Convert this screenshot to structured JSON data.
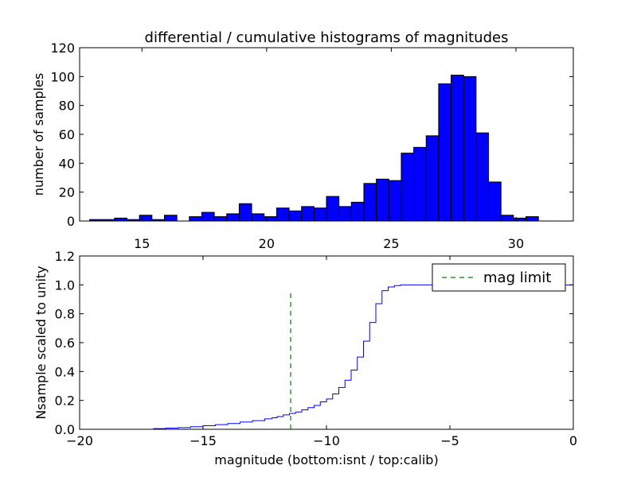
{
  "figure": {
    "title": "differential / cumulative histograms of magnitudes"
  },
  "chart_data": [
    {
      "type": "bar",
      "panel": "top",
      "xlabel": "",
      "ylabel": "number of samples",
      "xlim": [
        12.5,
        32.3
      ],
      "ylim": [
        0,
        120
      ],
      "xticks": [
        "15",
        "20",
        "25",
        "30"
      ],
      "xtick_values": [
        15,
        20,
        25,
        30
      ],
      "yticks": [
        "0",
        "20",
        "40",
        "60",
        "80",
        "100",
        "120"
      ],
      "ytick_values": [
        0,
        20,
        40,
        60,
        80,
        100,
        120
      ],
      "bin_edges": [
        12.9,
        13.4,
        13.9,
        14.4,
        14.9,
        15.4,
        15.9,
        16.4,
        16.9,
        17.4,
        17.9,
        18.4,
        18.9,
        19.4,
        19.9,
        20.4,
        20.9,
        21.4,
        21.9,
        22.4,
        22.9,
        23.4,
        23.9,
        24.4,
        24.9,
        25.4,
        25.9,
        26.4,
        26.9,
        27.4,
        27.9,
        28.4,
        28.9,
        29.4,
        29.9,
        30.4,
        30.9
      ],
      "values": [
        1,
        1,
        2,
        1,
        4,
        1,
        4,
        0,
        3,
        6,
        3,
        5,
        12,
        5,
        3,
        9,
        7,
        10,
        9,
        17,
        10,
        13,
        26,
        29,
        28,
        47,
        51,
        59,
        95,
        101,
        100,
        61,
        27,
        4,
        2,
        3
      ],
      "bar_color": "#0000ff",
      "grid": false,
      "ticks_on_top": true
    },
    {
      "type": "line",
      "panel": "bottom",
      "style": "steps",
      "xlabel": "magnitude (bottom:isnt / top:calib)",
      "ylabel": "Nsample scaled to unity",
      "xlim": [
        -20,
        0
      ],
      "ylim": [
        0,
        1.2
      ],
      "xticks": [
        "−20",
        "−15",
        "−10",
        "−5",
        "0"
      ],
      "xtick_values": [
        -20,
        -15,
        -10,
        -5,
        0
      ],
      "yticks": [
        "0.0",
        "0.2",
        "0.4",
        "0.6",
        "0.8",
        "1.0",
        "1.2"
      ],
      "ytick_values": [
        0,
        0.2,
        0.4,
        0.6,
        0.8,
        1.0,
        1.2
      ],
      "series": [
        {
          "color": "#0000ff",
          "x": [
            -20,
            -17,
            -16.5,
            -16,
            -15.5,
            -15,
            -14.5,
            -14,
            -13.5,
            -13,
            -12.5,
            -12.2,
            -12,
            -11.75,
            -11.5,
            -11.25,
            -11,
            -10.75,
            -10.5,
            -10.25,
            -10,
            -9.75,
            -9.5,
            -9.25,
            -9,
            -8.75,
            -8.5,
            -8.25,
            -8,
            -7.75,
            -7.5,
            -7.25,
            -7,
            -6,
            -5,
            -0.05,
            0
          ],
          "y": [
            0,
            0.005,
            0.008,
            0.012,
            0.018,
            0.025,
            0.032,
            0.04,
            0.05,
            0.06,
            0.072,
            0.08,
            0.088,
            0.1,
            0.11,
            0.12,
            0.135,
            0.15,
            0.165,
            0.19,
            0.21,
            0.245,
            0.29,
            0.34,
            0.41,
            0.5,
            0.61,
            0.74,
            0.87,
            0.96,
            0.985,
            0.995,
            1.0,
            1.0,
            1.0,
            1.0,
            0
          ]
        },
        {
          "name": "mag limit",
          "color": "#008000",
          "dashed": true,
          "x": [
            -11.45,
            -11.45
          ],
          "y": [
            0,
            0.96
          ]
        }
      ],
      "legend": {
        "label": "mag limit",
        "placement": "top-right"
      },
      "grid": false
    }
  ]
}
